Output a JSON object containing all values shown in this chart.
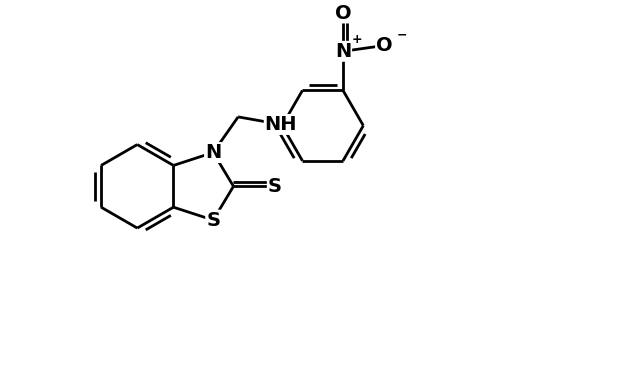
{
  "background_color": "#ffffff",
  "line_color": "#000000",
  "line_width": 2.0,
  "font_size_atom": 14,
  "font_size_charge": 9,
  "figsize": [
    6.4,
    3.66
  ],
  "dpi": 100,
  "xlim": [
    0,
    10
  ],
  "ylim": [
    0,
    6.1
  ]
}
